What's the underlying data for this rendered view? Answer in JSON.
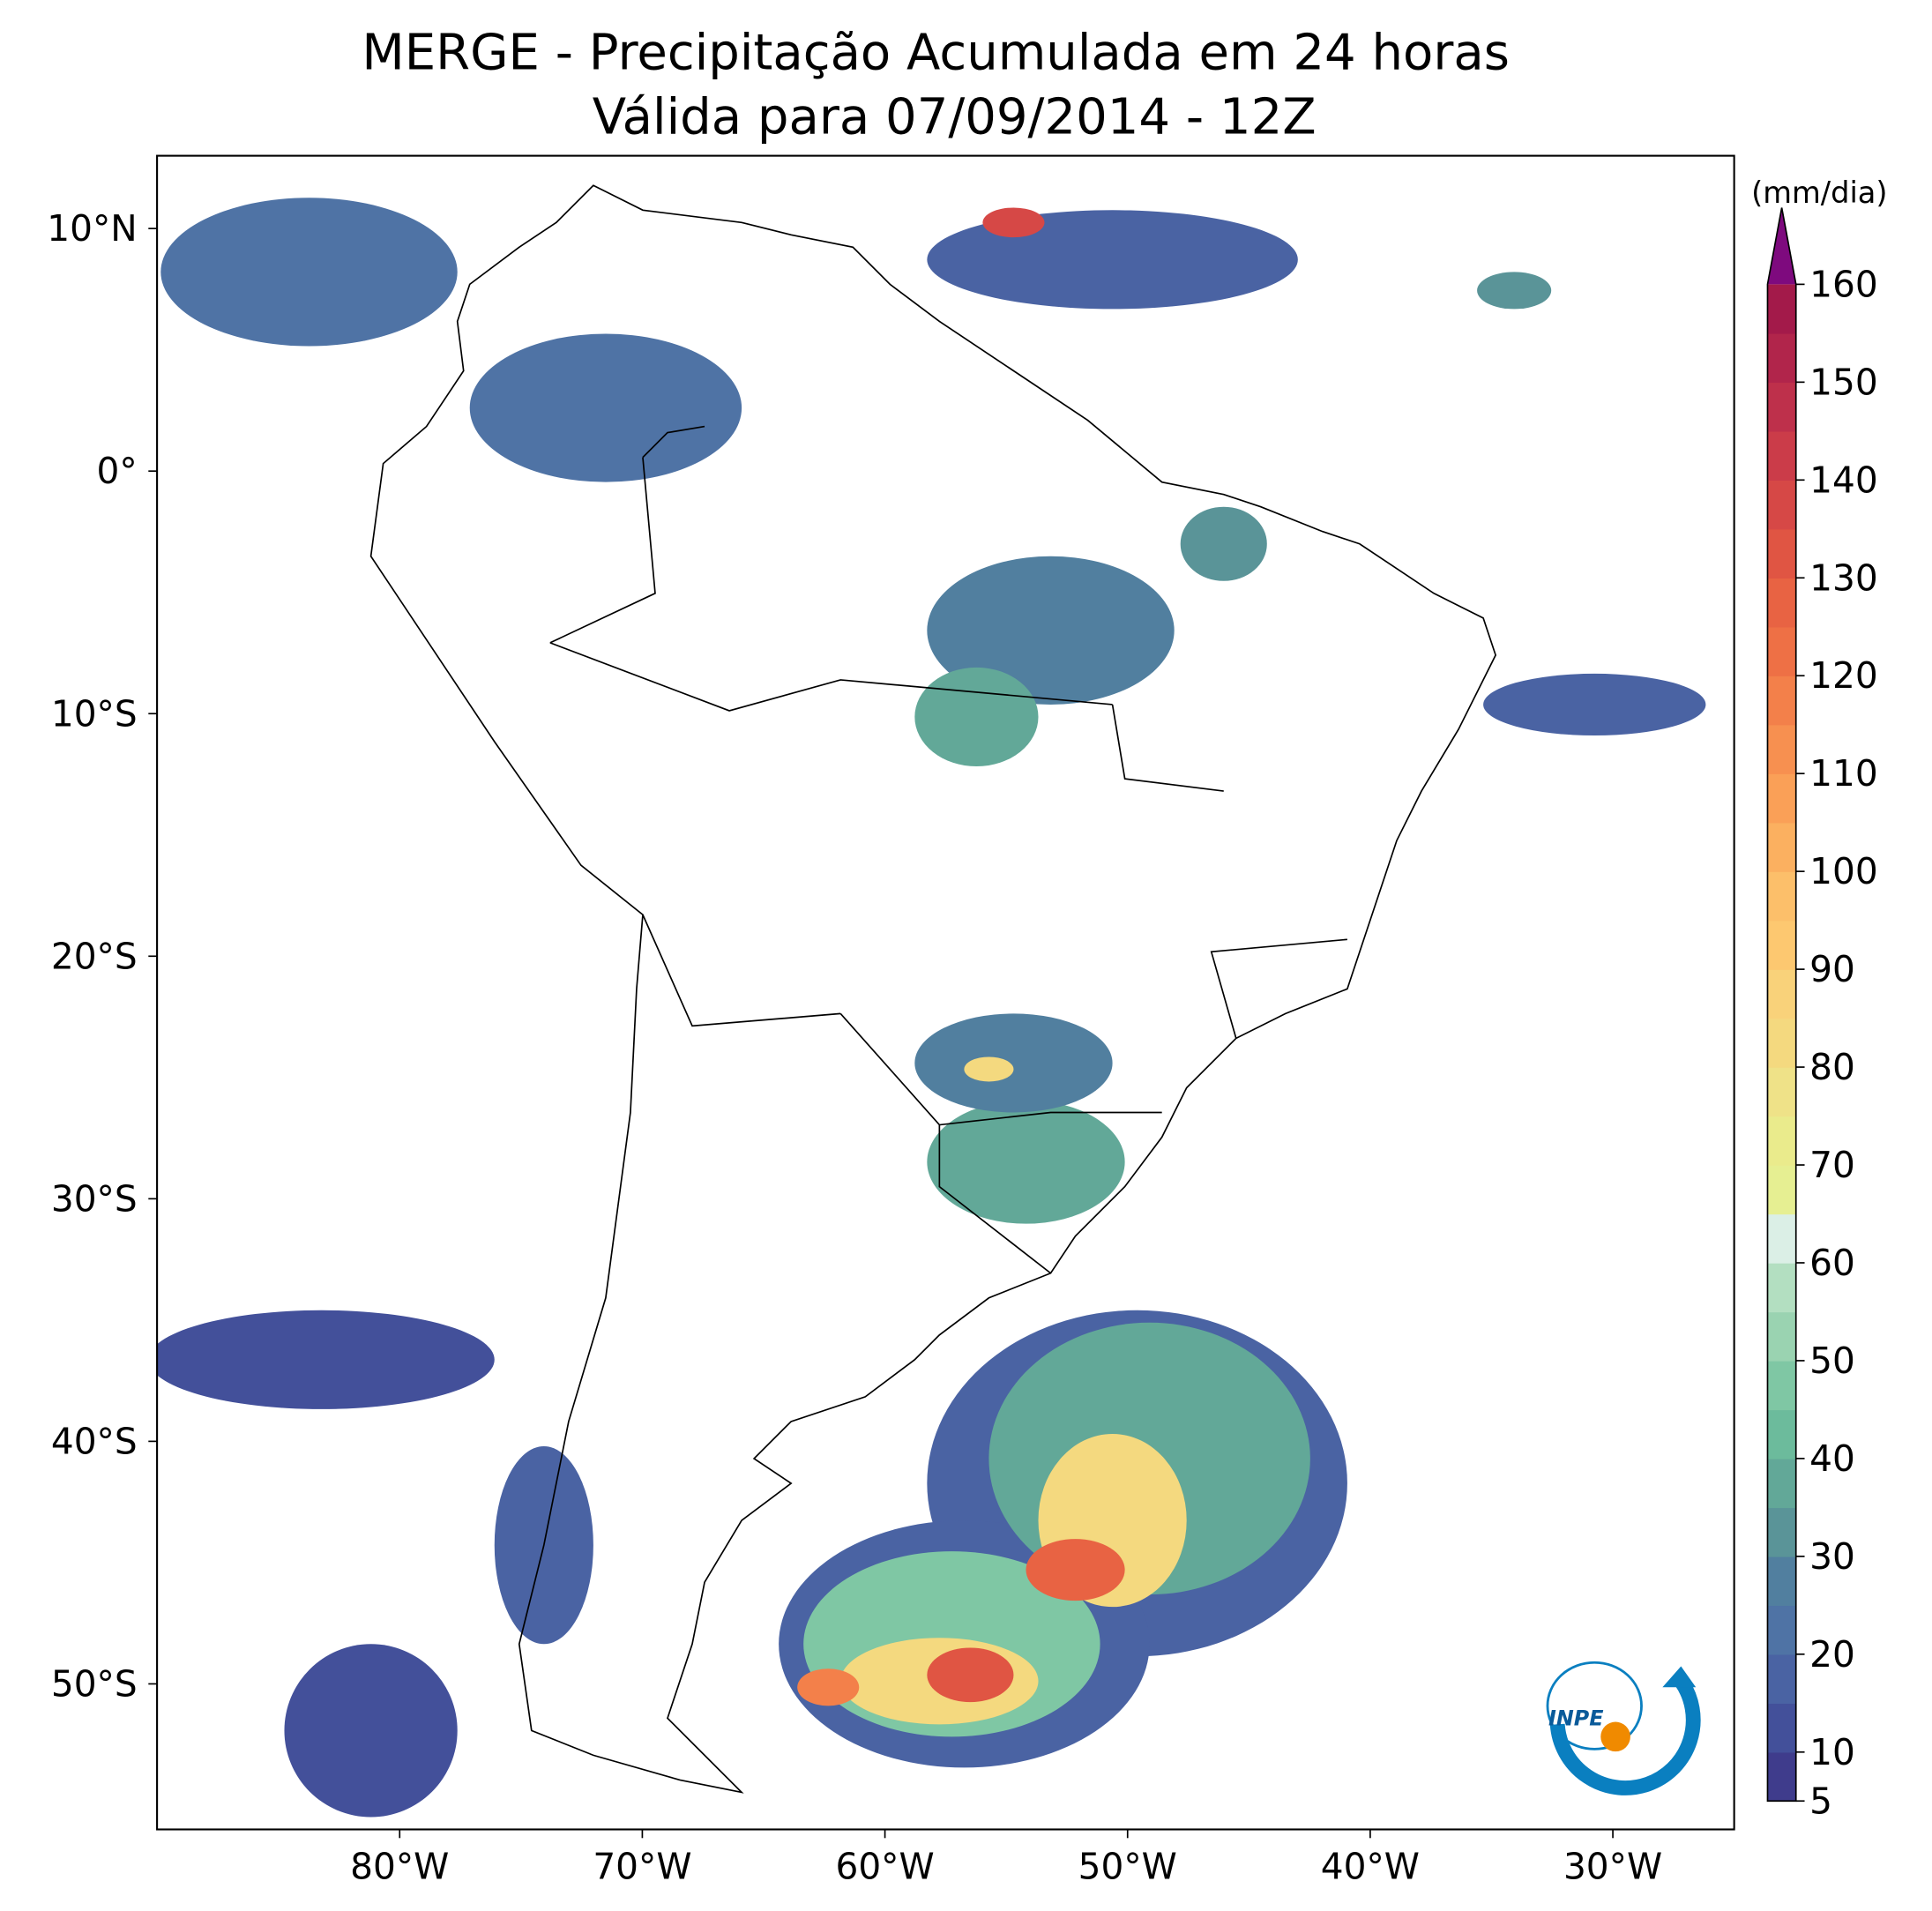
{
  "chart_data": {
    "type": "map",
    "title": "MERGE - Precipitação Acumulada em 24 horas",
    "subtitle": "Válida para 07/09/2014 - 12Z",
    "xlim": [
      -90,
      -25
    ],
    "ylim": [
      -56,
      13
    ],
    "xticks": [
      {
        "value": -80,
        "label": "80°W"
      },
      {
        "value": -70,
        "label": "70°W"
      },
      {
        "value": -60,
        "label": "60°W"
      },
      {
        "value": -50,
        "label": "50°W"
      },
      {
        "value": -40,
        "label": "40°W"
      },
      {
        "value": -30,
        "label": "30°W"
      }
    ],
    "yticks": [
      {
        "value": 10,
        "label": "10°N"
      },
      {
        "value": 0,
        "label": "0°"
      },
      {
        "value": -10,
        "label": "10°S"
      },
      {
        "value": -20,
        "label": "20°S"
      },
      {
        "value": -30,
        "label": "30°S"
      },
      {
        "value": -40,
        "label": "40°S"
      },
      {
        "value": -50,
        "label": "50°S"
      }
    ],
    "colorbar": {
      "label": "(mm/dia)",
      "lim": [
        5,
        160
      ],
      "ticks": [
        5,
        10,
        20,
        30,
        40,
        50,
        60,
        70,
        80,
        90,
        100,
        110,
        120,
        130,
        140,
        150,
        160
      ],
      "colors": [
        "#3f3c8c",
        "#43509a",
        "#4a63a3",
        "#4f73a5",
        "#517f9f",
        "#5a9498",
        "#62a898",
        "#6cbb9c",
        "#7fc7a4",
        "#9ad3b1",
        "#b3dfc1",
        "#dbefe6",
        "#e6ef92",
        "#eaeb8c",
        "#efe288",
        "#f4d97f",
        "#f9d27a",
        "#fdc870",
        "#fcbf6a",
        "#fbb060",
        "#faa057",
        "#f79050",
        "#f3804a",
        "#ee7045",
        "#e86343",
        "#e05543",
        "#d64846",
        "#cb3c49",
        "#be304b",
        "#b1254b",
        "#a31a4a"
      ],
      "extend_color": "#7e0a7e"
    },
    "logo": "INPE"
  }
}
